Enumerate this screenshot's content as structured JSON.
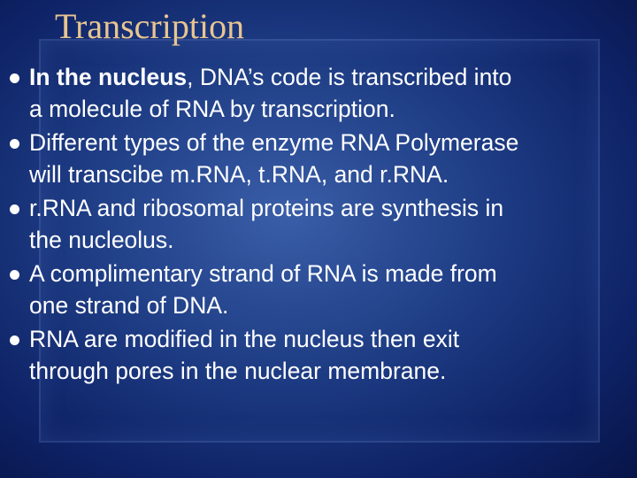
{
  "title": "Transcription",
  "bullets": [
    {
      "bold": "In the nucleus",
      "lines": [
        ", DNA’s code is transcribed into",
        "a molecule of RNA by transcription."
      ]
    },
    {
      "lines": [
        "Different types of the enzyme RNA Polymerase",
        "will transcibe m.RNA, t.RNA, and r.RNA."
      ]
    },
    {
      "lines": [
        "r.RNA and ribosomal proteins are synthesis in",
        "the nucleolus."
      ]
    },
    {
      "lines": [
        "A complimentary strand of RNA is made from",
        "one strand of DNA."
      ]
    },
    {
      "lines": [
        "RNA are modified in the nucleus then exit",
        "through pores in the nuclear membrane."
      ]
    }
  ]
}
